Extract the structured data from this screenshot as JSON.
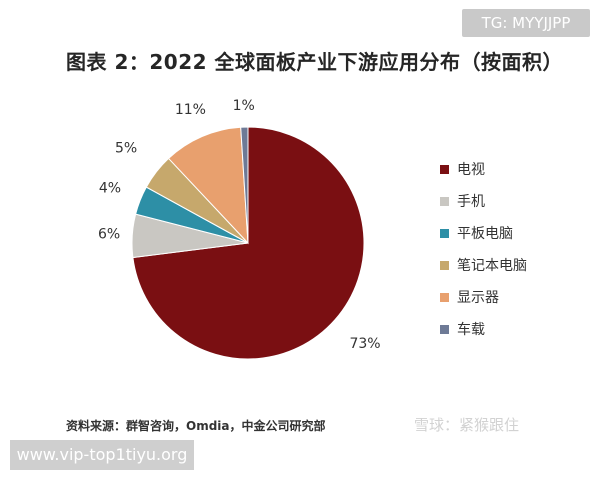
{
  "badge": {
    "text": "TG: MYYJJPP"
  },
  "watermark": {
    "text": "雪球：紧猴跟住"
  },
  "url_badge": {
    "text": "www.vip-top1tiyu.org"
  },
  "source": {
    "text": "资料来源：群智咨询，Omdia，中金公司研究部"
  },
  "chart_data": {
    "type": "pie",
    "title": "图表 2：2022 全球面板产业下游应用分布（按面积）",
    "categories": [
      "电视",
      "手机",
      "平板电脑",
      "笔记本电脑",
      "显示器",
      "车载"
    ],
    "values": [
      73,
      6,
      4,
      5,
      11,
      1
    ],
    "labels": [
      "73%",
      "6%",
      "4%",
      "5%",
      "11%",
      "1%"
    ],
    "colors": [
      "#7a0f12",
      "#c9c7c2",
      "#2d8fa6",
      "#c6a86c",
      "#e8a06e",
      "#6e7a96"
    ],
    "start": "12 o'clock",
    "direction": "clockwise",
    "legend_position": "right"
  }
}
